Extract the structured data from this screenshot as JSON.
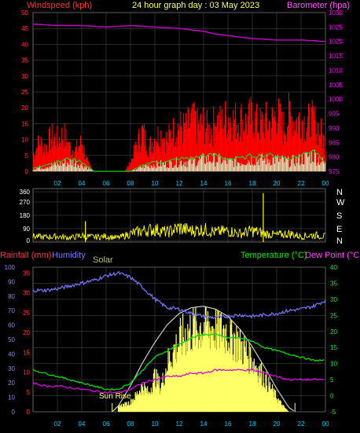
{
  "header": {
    "left_label": "Windspeed (kph)",
    "title": "24 hour graph day : 03 May 2023",
    "right_label": "Barometer (hpa)"
  },
  "colors": {
    "wind": "#ff0000",
    "gust": "#ff0000",
    "wind_avg": "#22cc22",
    "wind_light": "#ccffcc",
    "baro": "#cc00cc",
    "direction": "#ffff00",
    "rain": "#ff2222",
    "humidity": "#7777ff",
    "solar": "#ffff66",
    "temp": "#00dd00",
    "dew": "#dd00dd",
    "axis_green": "#00ff00",
    "axis_red": "#ff3333",
    "axis_magenta": "#ff00ff",
    "grid": "#555555"
  },
  "chart_data": [
    {
      "type": "line",
      "name_label": "wind-baro",
      "x_ticks": [
        "02",
        "04",
        "06",
        "08",
        "10",
        "12",
        "14",
        "16",
        "18",
        "20",
        "22",
        "00"
      ],
      "y_left_ticks": [
        "0",
        "5",
        "10",
        "15",
        "20",
        "25",
        "30",
        "35",
        "40",
        "45",
        "50"
      ],
      "y_right_ticks": [
        "975",
        "980",
        "985",
        "990",
        "995",
        "1000",
        "1005",
        "1010",
        "1015",
        "1020",
        "1025",
        "1030"
      ],
      "ylim_left": [
        0,
        50
      ],
      "ylim_right": [
        975,
        1030
      ],
      "series": [
        {
          "key": "barometer",
          "x": [
            0,
            2,
            4,
            6,
            8,
            10,
            12,
            14,
            15,
            16,
            17,
            18,
            20,
            22,
            24
          ],
          "values": [
            1026,
            1025.5,
            1025.5,
            1025,
            1025.5,
            1025,
            1024.5,
            1023.5,
            1022.5,
            1022,
            1021.5,
            1021,
            1020.5,
            1020.5,
            1020
          ]
        },
        {
          "key": "gust",
          "x": [
            0,
            0.5,
            1,
            1.5,
            2,
            2.5,
            3,
            3.5,
            4,
            4.5,
            5,
            5.5,
            6,
            6.5,
            7,
            7.5,
            8,
            8.5,
            9,
            9.5,
            10,
            10.5,
            11,
            11.5,
            12,
            12.5,
            13,
            13.5,
            14,
            14.5,
            15,
            15.5,
            16,
            16.5,
            17,
            17.5,
            18,
            18.5,
            19,
            19.5,
            20,
            20.5,
            21,
            21.5,
            22,
            22.5,
            23,
            23.5,
            24
          ],
          "values": [
            6,
            11,
            9,
            13,
            12,
            14,
            9,
            8,
            11,
            3,
            0,
            0,
            0,
            0,
            0,
            0,
            3,
            10,
            15,
            9,
            13,
            14,
            12,
            15,
            17,
            16,
            19,
            17,
            18,
            15,
            19,
            18,
            21,
            19,
            20,
            18,
            21,
            17,
            19,
            18,
            22,
            16,
            21,
            19,
            20,
            18,
            19,
            16,
            10
          ]
        },
        {
          "key": "wind_avg",
          "x": [
            0,
            1,
            2,
            3,
            4,
            5,
            6,
            7,
            8,
            9,
            10,
            11,
            12,
            13,
            14,
            15,
            16,
            17,
            18,
            19,
            20,
            21,
            22,
            23,
            24
          ],
          "values": [
            1,
            2,
            3,
            4,
            3,
            0,
            0,
            0,
            0,
            2,
            3,
            3,
            4,
            4,
            5,
            5,
            4,
            4,
            5,
            5,
            5,
            4,
            5,
            7,
            3
          ]
        }
      ]
    },
    {
      "type": "line",
      "name_label": "wind-direction",
      "y_left_ticks": [
        "360",
        "270",
        "180",
        "90",
        "0"
      ],
      "y_right_ticks": [
        "N",
        "W",
        "S",
        "E",
        "N"
      ],
      "ylim": [
        0,
        360
      ],
      "series": [
        {
          "key": "direction",
          "x": [
            0,
            1,
            2,
            3,
            4,
            5,
            6,
            7,
            8,
            9,
            10,
            11,
            12,
            13,
            14,
            15,
            16,
            17,
            18,
            19,
            20,
            21,
            22,
            23,
            24
          ],
          "values": [
            40,
            35,
            40,
            30,
            45,
            35,
            40,
            30,
            60,
            80,
            90,
            70,
            100,
            80,
            90,
            70,
            80,
            60,
            80,
            60,
            50,
            60,
            40,
            50,
            40
          ]
        }
      ],
      "spikes": [
        {
          "x": 4.3,
          "value": 140
        },
        {
          "x": 18.9,
          "value": 330
        }
      ]
    },
    {
      "type": "line",
      "name_label": "rain-humidity-temp",
      "header_labels": {
        "rainfall": "Rainfall (mm)",
        "humidity": "Humidity",
        "solar": "Solar",
        "temperature": "Temperature (°C)",
        "dew_point": "Dew Point (°C)"
      },
      "annotations": {
        "sunrise": "Sun Rise"
      },
      "x_ticks": [
        "02",
        "04",
        "06",
        "08",
        "10",
        "12",
        "14",
        "16",
        "18",
        "20",
        "22",
        "00"
      ],
      "y_humidity_ticks": [
        "0",
        "10",
        "20",
        "30",
        "40",
        "50",
        "60",
        "70",
        "80",
        "90",
        "100"
      ],
      "y_rain_ticks": [
        "0",
        "5",
        "10",
        "15",
        "20",
        "25",
        "30",
        "35"
      ],
      "y_temp_ticks": [
        "-5",
        "0",
        "5",
        "10",
        "15",
        "20",
        "25",
        "30",
        "35",
        "40"
      ],
      "ylim_humidity": [
        0,
        100
      ],
      "ylim_rain": [
        0,
        35
      ],
      "ylim_temp": [
        -5,
        40
      ],
      "series": [
        {
          "key": "humidity",
          "x": [
            0,
            1,
            2,
            3,
            4,
            5,
            6,
            7,
            8,
            9,
            10,
            11,
            12,
            13,
            14,
            15,
            16,
            17,
            18,
            19,
            20,
            21,
            22,
            23,
            24
          ],
          "values": [
            84,
            84,
            85,
            87,
            89,
            91,
            94,
            96,
            93,
            86,
            78,
            72,
            71,
            68,
            66,
            65,
            66,
            67,
            66,
            67,
            68,
            70,
            71,
            73,
            77
          ]
        },
        {
          "key": "temperature",
          "x": [
            0,
            1,
            2,
            3,
            4,
            5,
            6,
            7,
            8,
            9,
            10,
            11,
            12,
            13,
            14,
            15,
            16,
            17,
            18,
            19,
            20,
            21,
            22,
            23,
            24
          ],
          "values": [
            8,
            7,
            6,
            5,
            4,
            3,
            2,
            2,
            4,
            8,
            12,
            14,
            16,
            18,
            19,
            19,
            18,
            18,
            17,
            15,
            14,
            13,
            12,
            11,
            11
          ]
        },
        {
          "key": "dew_point",
          "x": [
            0,
            1,
            2,
            3,
            4,
            5,
            6,
            7,
            8,
            9,
            10,
            11,
            12,
            13,
            14,
            15,
            16,
            17,
            18,
            19,
            20,
            21,
            22,
            23,
            24
          ],
          "values": [
            4,
            3,
            3,
            2.5,
            2,
            1.5,
            1,
            1,
            2,
            4,
            5,
            6,
            6,
            7,
            7,
            8,
            8,
            8,
            8,
            7,
            6,
            5,
            5,
            5,
            5
          ]
        },
        {
          "key": "solar_envelope",
          "x": [
            6.5,
            7,
            8,
            9,
            10,
            11,
            12,
            13,
            14,
            15,
            16,
            17,
            18,
            19,
            20,
            21,
            21.5
          ],
          "values": [
            0,
            4,
            18,
            34,
            48,
            60,
            68,
            72,
            73,
            71,
            66,
            57,
            45,
            31,
            16,
            3,
            0
          ]
        },
        {
          "key": "solar_measured",
          "x": [
            7,
            7.5,
            8,
            8.5,
            9,
            9.5,
            10,
            10.5,
            11,
            11.5,
            12,
            12.5,
            13,
            13.5,
            14,
            14.5,
            15,
            15.5,
            16,
            16.5,
            17,
            17.5,
            18,
            18.5,
            19,
            19.5,
            20,
            20.5,
            21
          ],
          "values": [
            5,
            6,
            8,
            14,
            22,
            15,
            30,
            20,
            40,
            50,
            58,
            65,
            68,
            70,
            72,
            71,
            70,
            69,
            66,
            62,
            56,
            50,
            43,
            36,
            28,
            20,
            12,
            5,
            0
          ]
        }
      ]
    }
  ]
}
